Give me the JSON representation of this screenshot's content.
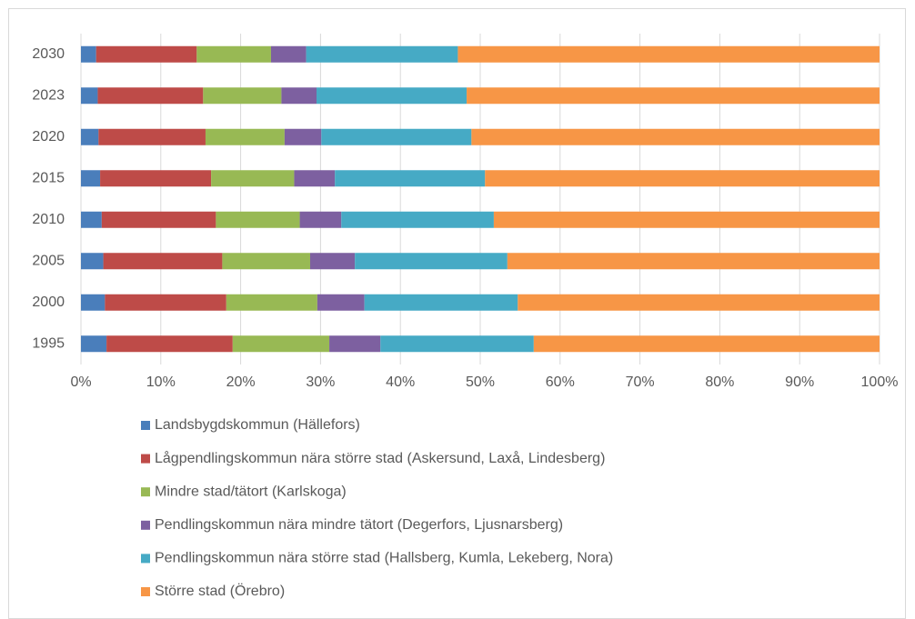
{
  "chart_data": {
    "type": "stacked_barh",
    "categories": [
      "1995",
      "2000",
      "2005",
      "2010",
      "2015",
      "2020",
      "2023",
      "2030"
    ],
    "series": [
      {
        "name": "Landsbygdskommun (Hällefors)",
        "color": "#4a7ebb",
        "values": [
          3.2,
          3.0,
          2.8,
          2.6,
          2.4,
          2.2,
          2.1,
          1.9
        ]
      },
      {
        "name": "Lågpendlingskommun nära större stad (Askersund, Laxå, Lindesberg)",
        "color": "#be4b48",
        "values": [
          15.8,
          15.2,
          14.9,
          14.3,
          13.9,
          13.4,
          13.2,
          12.6
        ]
      },
      {
        "name": "Mindre stad/tätort (Karlskoga)",
        "color": "#98b954",
        "values": [
          12.1,
          11.4,
          11.0,
          10.5,
          10.4,
          9.9,
          9.8,
          9.3
        ]
      },
      {
        "name": "Pendlingskommun nära mindre tätort (Degerfors, Ljusnarsberg)",
        "color": "#7d60a0",
        "values": [
          6.4,
          5.9,
          5.6,
          5.2,
          5.1,
          4.6,
          4.4,
          4.4
        ]
      },
      {
        "name": "Pendlingskommun nära större stad (Hallsberg, Kumla, Lekeberg, Nora)",
        "color": "#46aac5",
        "values": [
          19.2,
          19.2,
          19.1,
          19.1,
          18.8,
          18.8,
          18.8,
          19.0
        ]
      },
      {
        "name": "Större stad (Örebro)",
        "color": "#f79646",
        "values": [
          43.3,
          45.3,
          46.6,
          48.3,
          49.4,
          51.1,
          51.7,
          52.8
        ]
      }
    ],
    "xlim": [
      0,
      100
    ],
    "xticks": [
      {
        "value": 0,
        "label": "0%"
      },
      {
        "value": 10,
        "label": "10%"
      },
      {
        "value": 20,
        "label": "20%"
      },
      {
        "value": 30,
        "label": "30%"
      },
      {
        "value": 40,
        "label": "40%"
      },
      {
        "value": 50,
        "label": "50%"
      },
      {
        "value": 60,
        "label": "60%"
      },
      {
        "value": 70,
        "label": "70%"
      },
      {
        "value": 80,
        "label": "80%"
      },
      {
        "value": 90,
        "label": "90%"
      },
      {
        "value": 100,
        "label": "100%"
      }
    ],
    "grid": true,
    "legend": "bottom"
  }
}
